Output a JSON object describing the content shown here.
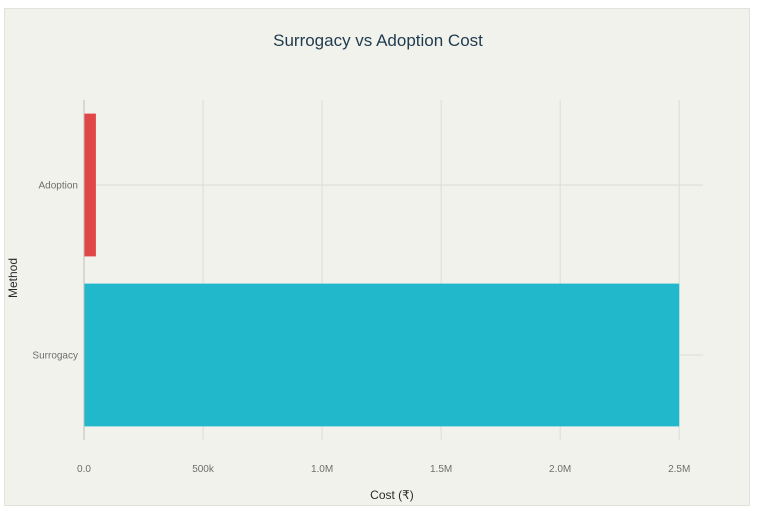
{
  "chart_data": {
    "type": "bar",
    "orientation": "horizontal",
    "title": "Surrogacy vs Adoption Cost",
    "xlabel": "Cost (₹)",
    "ylabel": "Method",
    "categories": [
      "Adoption",
      "Surrogacy"
    ],
    "values": [
      50000,
      2500000
    ],
    "bar_colors": [
      "#e04848",
      "#22b8cc"
    ],
    "xlim": [
      0,
      2600000
    ],
    "x_ticks": [
      {
        "value": 0,
        "label": "0.0"
      },
      {
        "value": 500000,
        "label": "500k"
      },
      {
        "value": 1000000,
        "label": "1.0M"
      },
      {
        "value": 1500000,
        "label": "1.5M"
      },
      {
        "value": 2000000,
        "label": "2.0M"
      },
      {
        "value": 2500000,
        "label": "2.5M"
      }
    ],
    "grid": true,
    "legend": "none"
  }
}
